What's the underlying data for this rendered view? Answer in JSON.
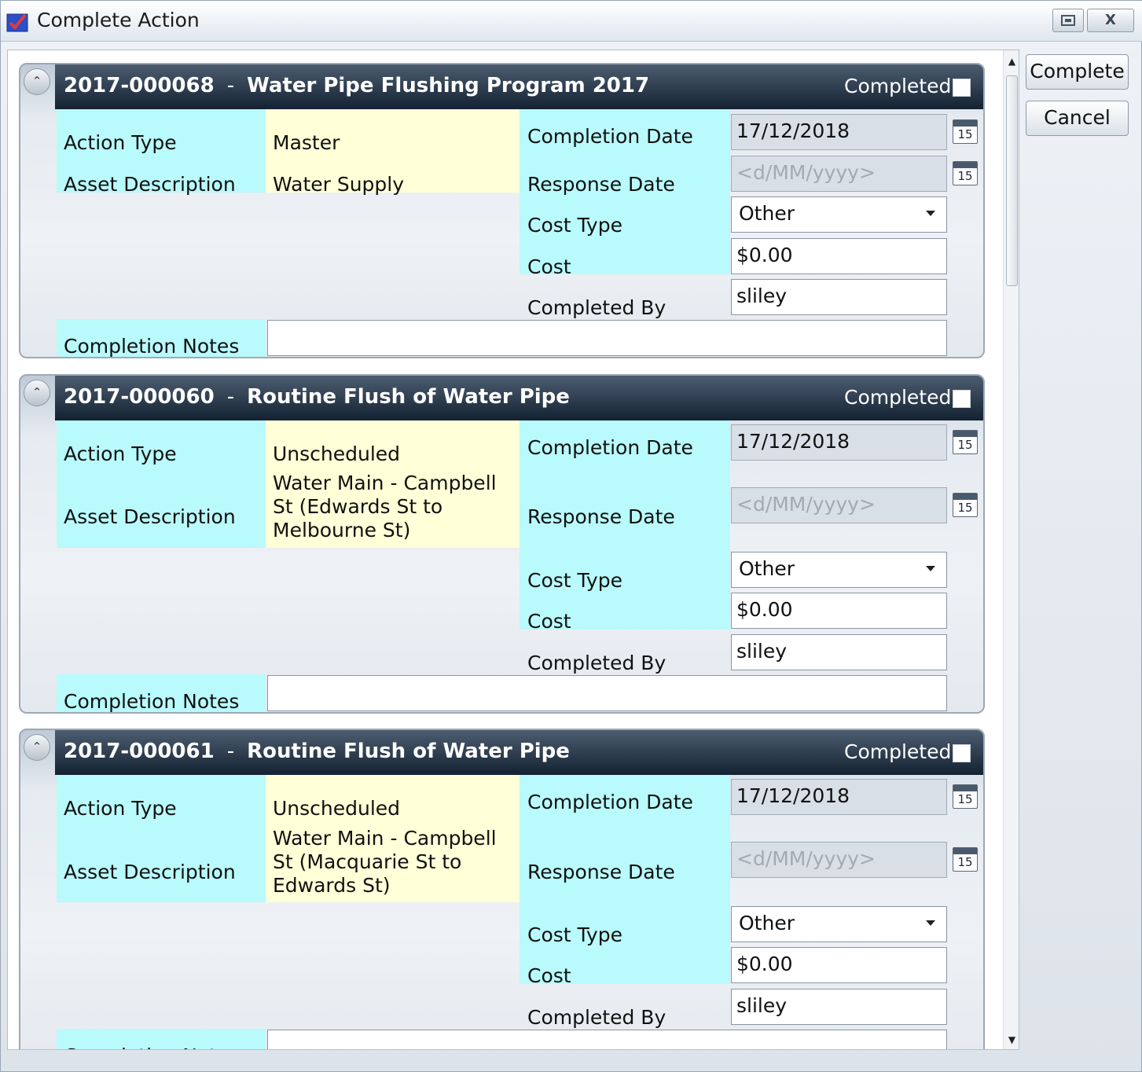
{
  "window": {
    "title": "Complete Action",
    "restore_icon": "restore-icon",
    "close_glyph": "X"
  },
  "actions_panel": {
    "complete_label": "Complete",
    "cancel_label": "Cancel"
  },
  "labels": {
    "completed": "Completed",
    "action_type": "Action Type",
    "asset_description": "Asset Description",
    "completion_date": "Completion Date",
    "response_date": "Response Date",
    "cost_type": "Cost Type",
    "cost": "Cost",
    "completed_by": "Completed By",
    "completion_notes": "Completion Notes",
    "calendar_day": "15"
  },
  "cards": [
    {
      "id": "2017-000068",
      "separator": "-",
      "name": "Water Pipe Flushing Program 2017",
      "completed": false,
      "action_type": "Master",
      "asset_description": "Water Supply",
      "completion_date": "17/12/2018",
      "response_date_placeholder": "<d/MM/yyyy>",
      "cost_type": "Other",
      "cost": "$0.00",
      "completed_by": "sliley",
      "completion_notes": ""
    },
    {
      "id": "2017-000060",
      "separator": "-",
      "name": "Routine Flush of Water Pipe",
      "completed": false,
      "action_type": "Unscheduled",
      "asset_description": "Water Main - Campbell St (Edwards St to Melbourne St)",
      "completion_date": "17/12/2018",
      "response_date_placeholder": "<d/MM/yyyy>",
      "cost_type": "Other",
      "cost": "$0.00",
      "completed_by": "sliley",
      "completion_notes": ""
    },
    {
      "id": "2017-000061",
      "separator": "-",
      "name": "Routine Flush of Water Pipe",
      "completed": false,
      "action_type": "Unscheduled",
      "asset_description": "Water Main - Campbell St (Macquarie St to Edwards St)",
      "completion_date": "17/12/2018",
      "response_date_placeholder": "<d/MM/yyyy>",
      "cost_type": "Other",
      "cost": "$0.00",
      "completed_by": "sliley",
      "completion_notes": ""
    }
  ],
  "colors": {
    "label_background": "#b9fafc",
    "value_background": "#ffffd8",
    "header_dark": "#142232"
  }
}
